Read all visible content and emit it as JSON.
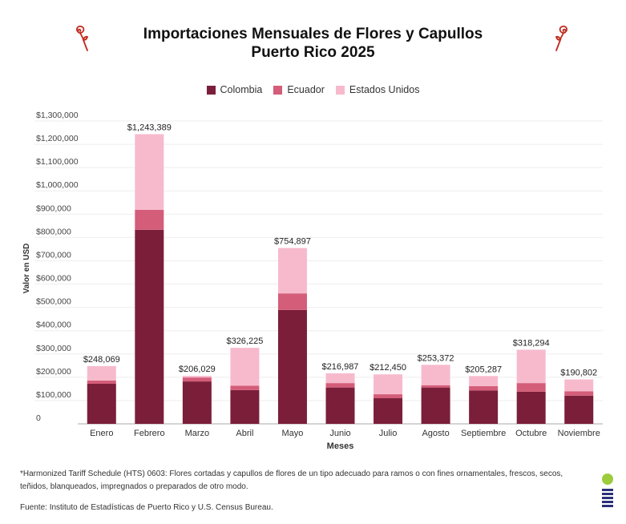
{
  "title_line1": "Importaciones Mensuales de Flores y Capullos",
  "title_line2": "Puerto Rico 2025",
  "icons": {
    "left": "rose-icon",
    "right": "rose-icon",
    "logo": "institute-logo"
  },
  "footnote": "*Harmonized Tariff Schedule (HTS) 0603: Flores cortadas y capullos de flores de un tipo adecuado para ramos o con fines ornamentales, frescos, secos, teñidos, blanqueados, impregnados o preparados de otro modo.",
  "source": "Fuente: Instituto de Estadísticas de Puerto Rico y U.S. Census Bureau.",
  "chart_data": {
    "type": "bar",
    "stacked": true,
    "xlabel": "Meses",
    "ylabel": "Valor en USD",
    "ylim": [
      0,
      1300000
    ],
    "yticks": [
      0,
      100000,
      200000,
      300000,
      400000,
      500000,
      600000,
      700000,
      800000,
      900000,
      1000000,
      1100000,
      1200000,
      1300000
    ],
    "ytick_labels": [
      "0",
      "$100,000",
      "$200,000",
      "$300,000",
      "$400,000",
      "$500,000",
      "$600,000",
      "$700,000",
      "$800,000",
      "$900,000",
      "$1,000,000",
      "$1,100,000",
      "$1,200,000",
      "$1,300,000"
    ],
    "grid": true,
    "legend_position": "top",
    "categories": [
      "Enero",
      "Febrero",
      "Marzo",
      "Abril",
      "Mayo",
      "Junio",
      "Julio",
      "Agosto",
      "Septiembre",
      "Octubre",
      "Noviembre"
    ],
    "series": [
      {
        "name": "Colombia",
        "color": "#7b1e3a",
        "values": [
          172000,
          833000,
          182000,
          145000,
          489000,
          156000,
          110000,
          156000,
          143000,
          138000,
          121000
        ]
      },
      {
        "name": "Ecuador",
        "color": "#d45d79",
        "values": [
          14000,
          86000,
          17000,
          19000,
          71000,
          19000,
          17000,
          10000,
          19000,
          37000,
          19000
        ]
      },
      {
        "name": "Estados Unidos",
        "color": "#f7bacd",
        "values": [
          62069,
          324389,
          7029,
          162225,
          194897,
          41987,
          85450,
          87372,
          43287,
          143294,
          50802
        ]
      }
    ],
    "totals": [
      248069,
      1243389,
      206029,
      326225,
      754897,
      216987,
      212450,
      253372,
      205287,
      318294,
      190802
    ],
    "total_labels": [
      "$248,069",
      "$1,243,389",
      "$206,029",
      "$326,225",
      "$754,897",
      "$216,987",
      "$212,450",
      "$253,372",
      "$205,287",
      "$318,294",
      "$190,802"
    ]
  }
}
